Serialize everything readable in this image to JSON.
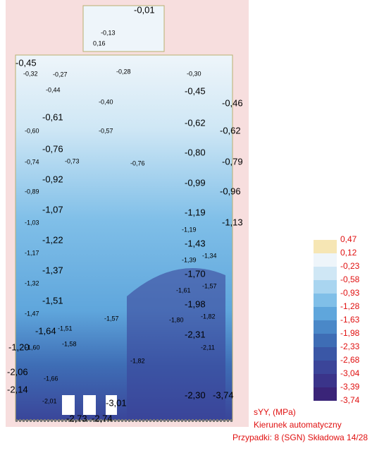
{
  "labels": [
    "-0,01",
    "-0,13",
    "0,16",
    "-0,45",
    "-0,32",
    "-0,27",
    "-0,28",
    "-0,30",
    "-0,44",
    "-0,45",
    "-0,40",
    "-0,46",
    "-0,61",
    "-0,62",
    "-0,60",
    "-0,57",
    "-0,62",
    "-0,76",
    "-0,80",
    "-0,74",
    "-0,73",
    "-0,76",
    "-0,79",
    "-0,92",
    "-0,99",
    "-0,89",
    "-0,96",
    "-1,07",
    "-1,19",
    "-1,03",
    "-1,13",
    "-1,19",
    "-1,22",
    "-1,43",
    "-1,17",
    "-1,39",
    "-1,34",
    "-1,37",
    "-1,70",
    "-1,32",
    "-1,61",
    "-1,57",
    "-1,51",
    "-1,98",
    "-1,47",
    "-1,57",
    "-1,80",
    "-1,82",
    "-1,64",
    "-1,51",
    "-2,31",
    "-1,20",
    "-1,60",
    "-1,58",
    "-2,11",
    "-1,82",
    "-2,06",
    "-1,66",
    "-2,14",
    "-2,30",
    "-3,74",
    "-2,01",
    "-3,01",
    "-2,73",
    "-2,74"
  ],
  "legend": {
    "values": [
      "0,47",
      "0,12",
      "-0,23",
      "-0,58",
      "-0,93",
      "-1,28",
      "-1,63",
      "-1,98",
      "-2,33",
      "-2,68",
      "-3,04",
      "-3,39",
      "-3,74"
    ],
    "colors": [
      "#f6e6b4",
      "#eef5fa",
      "#cfe7f5",
      "#a9d5f0",
      "#80bfe8",
      "#5fa6dc",
      "#4a88c8",
      "#3e6db5",
      "#3a57a6",
      "#3b4599",
      "#3a348a",
      "#3a2478"
    ]
  },
  "footer": [
    "sYY, (MPa)",
    "Kierunek automatyczny",
    "Przypadki: 8 (SGN) Składowa 14/28"
  ]
}
